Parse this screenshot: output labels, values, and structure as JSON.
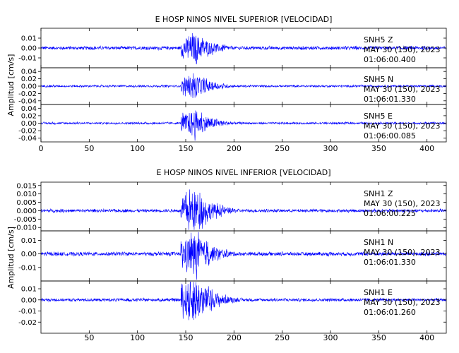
{
  "colors": {
    "trace": "#0000ff",
    "axis": "#000000",
    "background": "#ffffff"
  },
  "chart_data": [
    {
      "type": "line",
      "title": "E HOSP NINOS NIVEL SUPERIOR [VELOCIDAD]",
      "ylabel": "Amplitud [cm/s]",
      "xlim": [
        0,
        420
      ],
      "xticks": [
        0,
        50,
        100,
        150,
        200,
        250,
        300,
        350,
        400
      ],
      "event_onset_s": 145,
      "event_peak_s": 160,
      "panels": [
        {
          "station": "SNH5",
          "component": "Z",
          "date": "MAY 30 (150), 2023",
          "time": "01:06:00.400",
          "ylim": [
            -0.02,
            0.02
          ],
          "yticks": [
            -0.01,
            0.0,
            0.01
          ],
          "ytick_labels": [
            "-0.01",
            "0.00",
            "0.01"
          ],
          "noise_amplitude": 0.0015,
          "peak_amplitude": 0.014
        },
        {
          "station": "SNH5",
          "component": "N",
          "date": "MAY 30 (150), 2023",
          "time": "01:06:01.330",
          "ylim": [
            -0.05,
            0.05
          ],
          "yticks": [
            -0.04,
            -0.02,
            0.0,
            0.02,
            0.04
          ],
          "ytick_labels": [
            "-0.04",
            "-0.02",
            "0.00",
            "0.02",
            "0.04"
          ],
          "noise_amplitude": 0.0025,
          "peak_amplitude": 0.03
        },
        {
          "station": "SNH5",
          "component": "E",
          "date": "MAY 30 (150), 2023",
          "time": "01:06:00.085",
          "ylim": [
            -0.05,
            0.05
          ],
          "yticks": [
            -0.04,
            -0.02,
            0.0,
            0.02,
            0.04
          ],
          "ytick_labels": [
            "-0.04",
            "-0.02",
            "0.00",
            "0.02",
            "0.04"
          ],
          "noise_amplitude": 0.0025,
          "peak_amplitude": 0.035
        }
      ]
    },
    {
      "type": "line",
      "title": "E HOSP NINOS NIVEL INFERIOR [VELOCIDAD]",
      "ylabel": "Amplitud [cm/s]",
      "xlim": [
        0,
        420
      ],
      "xticks": [
        50,
        100,
        150,
        200,
        250,
        300,
        350,
        400
      ],
      "event_onset_s": 145,
      "event_peak_s": 160,
      "panels": [
        {
          "station": "SNH1",
          "component": "Z",
          "date": "MAY 30 (150), 2023",
          "time": "01:06:00.225",
          "ylim": [
            -0.012,
            0.017
          ],
          "yticks": [
            -0.01,
            -0.005,
            0.0,
            0.005,
            0.01,
            0.015
          ],
          "ytick_labels": [
            "-0.010",
            "-0.005",
            "0.000",
            "0.005",
            "0.010",
            "0.015"
          ],
          "noise_amplitude": 0.0008,
          "peak_amplitude": 0.012
        },
        {
          "station": "SNH1",
          "component": "N",
          "date": "MAY 30 (150), 2023",
          "time": "01:06:01.330",
          "ylim": [
            -0.02,
            0.017
          ],
          "yticks": [
            -0.01,
            0.0,
            0.01
          ],
          "ytick_labels": [
            "-0.01",
            "0.00",
            "0.01"
          ],
          "noise_amplitude": 0.0012,
          "peak_amplitude": 0.015
        },
        {
          "station": "SNH1",
          "component": "E",
          "date": "MAY 30 (150), 2023",
          "time": "01:06:01.260",
          "ylim": [
            -0.03,
            0.017
          ],
          "yticks": [
            -0.02,
            -0.01,
            0.0,
            0.01
          ],
          "ytick_labels": [
            "-0.02",
            "-0.01",
            "0.00",
            "0.01"
          ],
          "noise_amplitude": 0.0012,
          "peak_amplitude": 0.02
        }
      ]
    }
  ]
}
